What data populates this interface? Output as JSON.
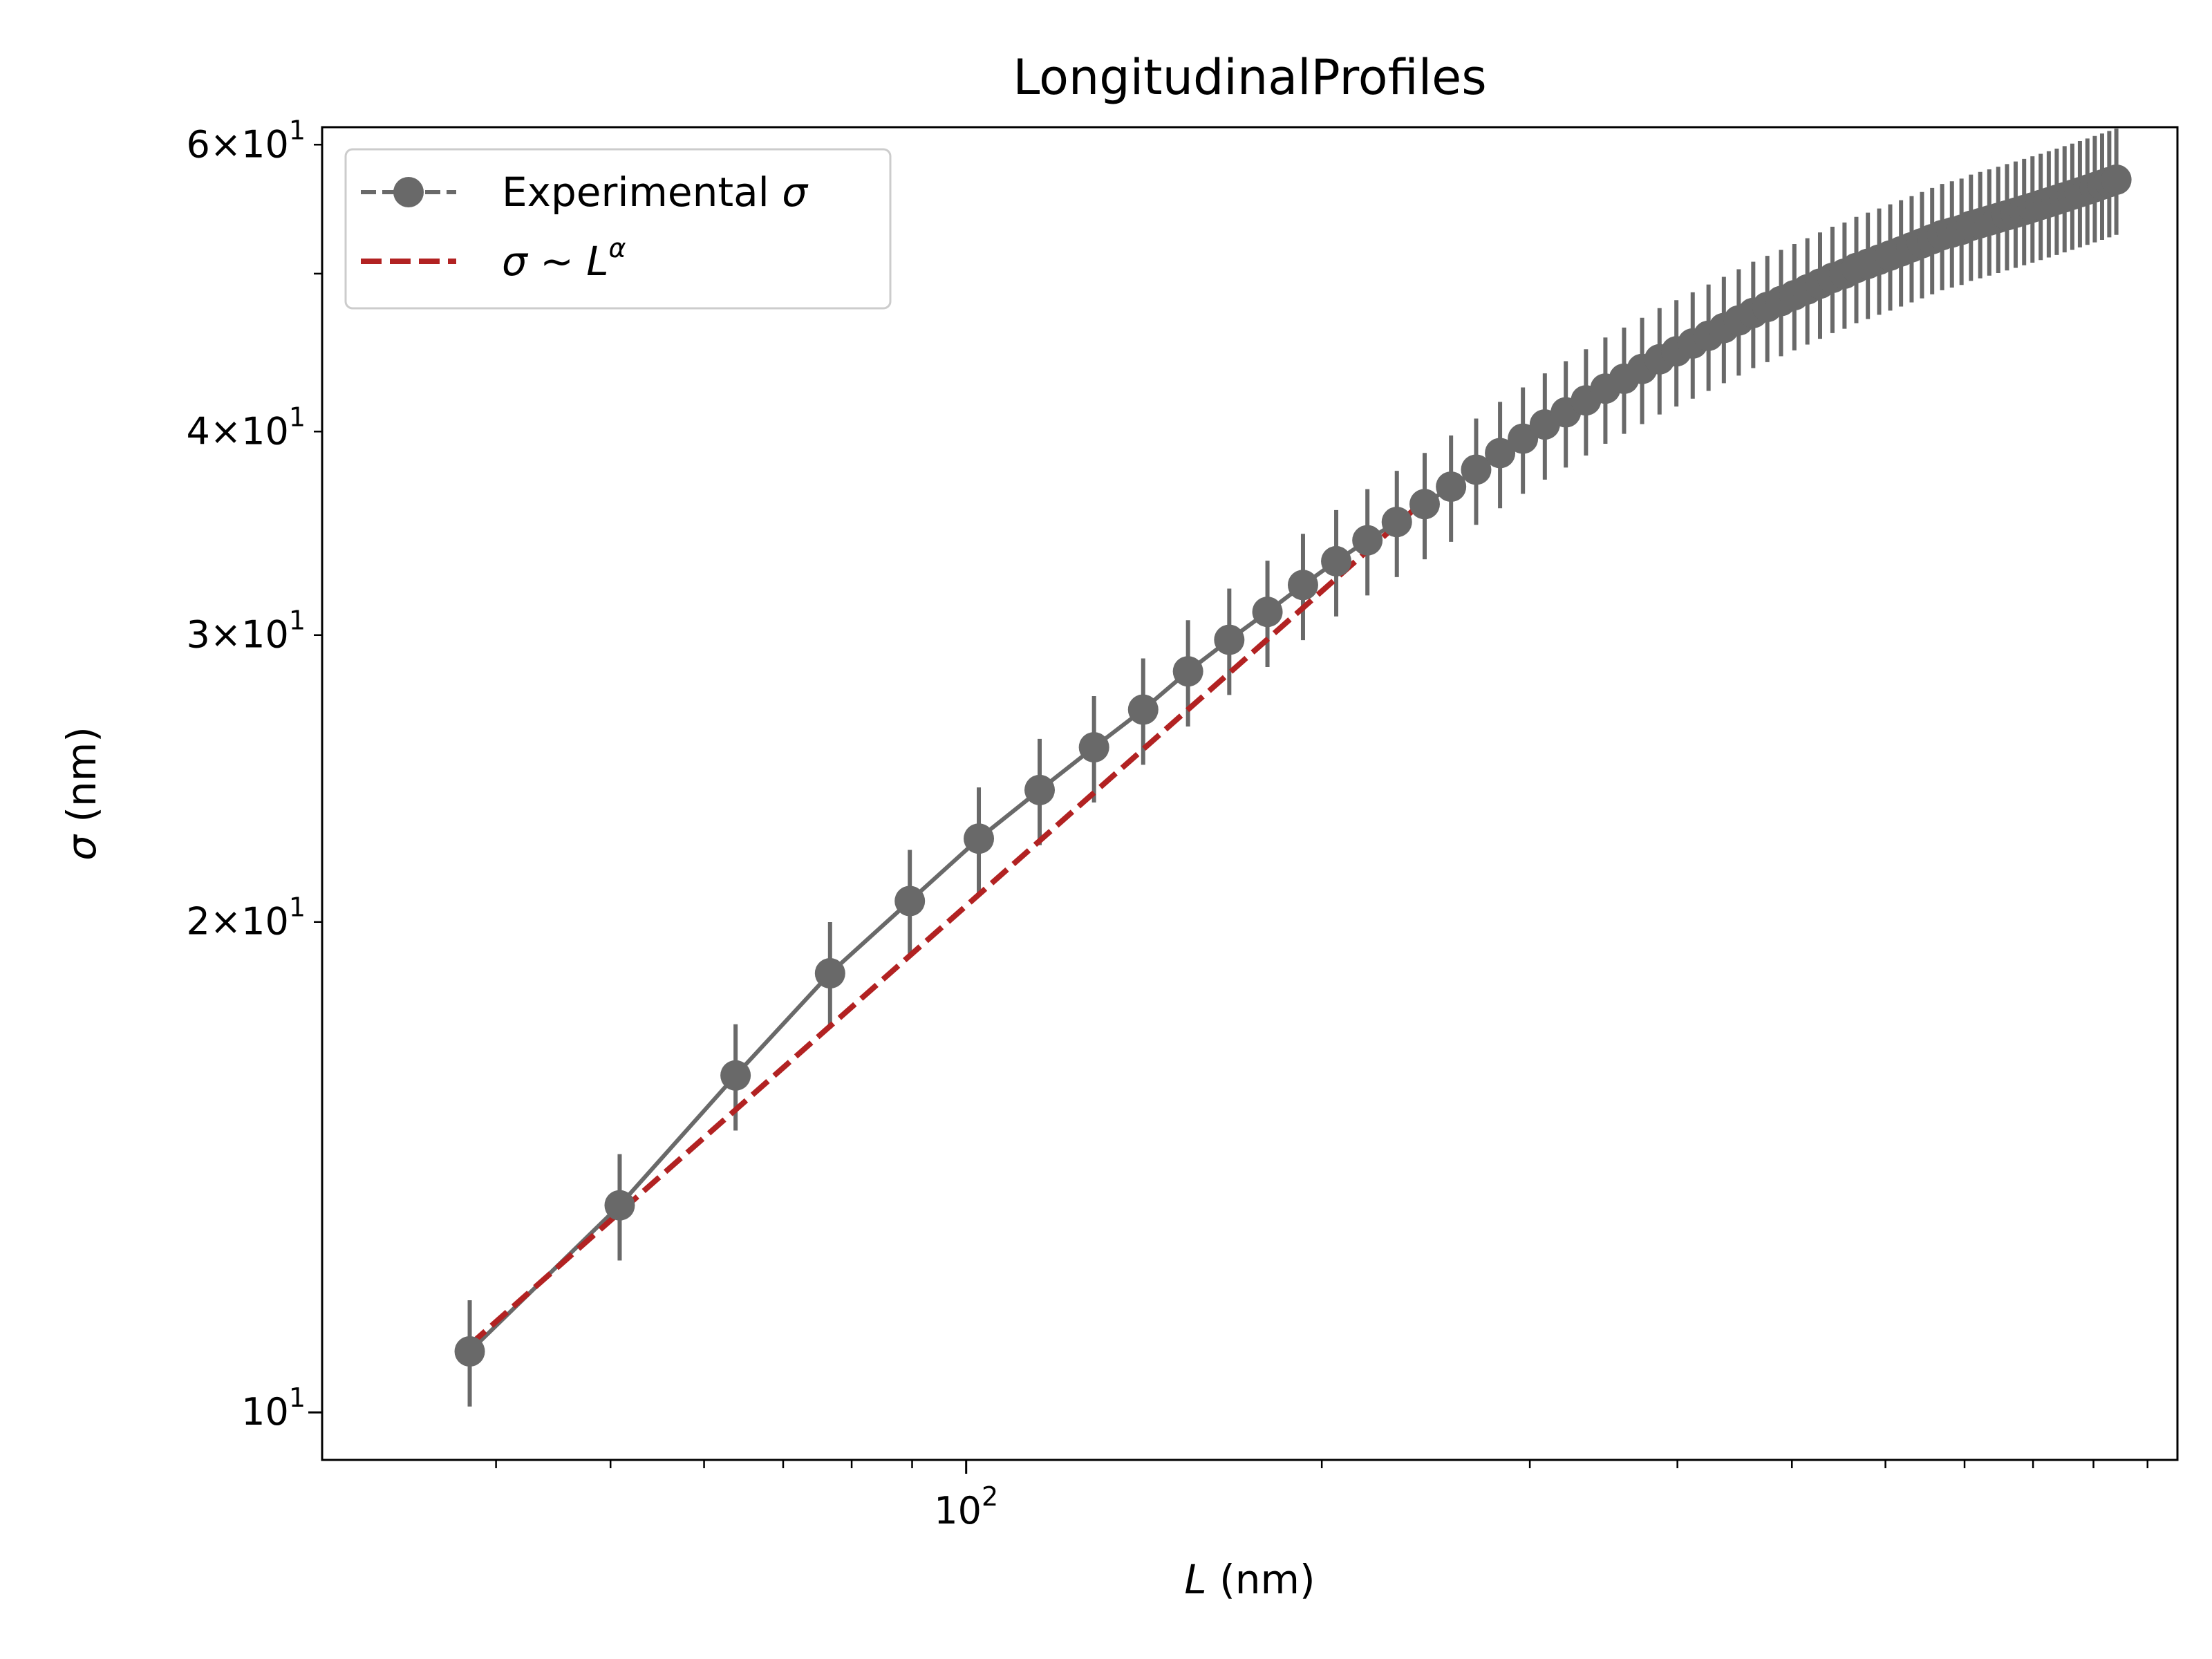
{
  "chart_data": {
    "type": "line",
    "title": "LongitudinalProfiles",
    "xlabel_var": "L",
    "xlabel_unit": " (nm)",
    "ylabel_var": "σ",
    "ylabel_unit": " (nm)",
    "x_scale": "log",
    "y_scale": "log",
    "xlim": [
      28.5,
      1060
    ],
    "ylim": [
      9.35,
      61.5
    ],
    "grid": false,
    "legend_position": "top-left",
    "x_ticks": [
      {
        "value": 100,
        "base": "10",
        "exp": "2"
      }
    ],
    "y_ticks": [
      {
        "value": 10,
        "mant": "",
        "base": "10",
        "exp": "1"
      },
      {
        "value": 20,
        "mant": "2×",
        "base": "10",
        "exp": "1"
      },
      {
        "value": 30,
        "mant": "3×",
        "base": "10",
        "exp": "1"
      },
      {
        "value": 40,
        "mant": "4×",
        "base": "10",
        "exp": "1"
      },
      {
        "value": 60,
        "mant": "6×",
        "base": "10",
        "exp": "1"
      }
    ],
    "series": [
      {
        "name": "Experimental σ",
        "legend_main": "Experimental ",
        "legend_sym": "σ",
        "color": "#696969",
        "x": [
          38.0,
          50.9,
          63.8,
          76.7,
          89.6,
          102.5,
          115.4,
          128.3,
          141.2,
          154.1,
          167.0,
          179.9,
          192.8,
          205.7,
          218.6,
          231.5,
          244.4,
          257.3,
          270.2,
          283.1,
          296.0,
          308.9,
          321.8,
          334.7,
          347.6,
          360.5,
          373.4,
          386.3,
          399.2,
          412.1,
          425.0,
          437.9,
          450.8,
          463.7,
          476.6,
          489.5,
          502.4,
          515.3,
          528.2,
          541.1,
          554.0,
          566.9,
          579.8,
          592.7,
          605.6,
          618.5,
          631.4,
          644.3,
          657.2,
          670.1,
          683.0,
          695.9,
          708.8,
          721.7,
          734.6,
          747.5,
          760.4,
          773.3,
          786.2,
          799.1,
          812.0,
          824.9,
          837.8,
          850.7,
          863.6,
          876.5,
          889.4,
          902.3,
          915.2,
          928.1,
          941.0
        ],
        "y": [
          10.9,
          13.4,
          16.1,
          18.6,
          20.6,
          22.5,
          24.1,
          25.6,
          27.0,
          28.5,
          29.8,
          31.0,
          32.2,
          33.3,
          34.3,
          35.2,
          36.1,
          37.0,
          37.9,
          38.8,
          39.6,
          40.4,
          41.1,
          41.8,
          42.5,
          43.1,
          43.7,
          44.3,
          44.8,
          45.3,
          45.8,
          46.3,
          46.8,
          47.3,
          47.7,
          48.1,
          48.5,
          48.9,
          49.3,
          49.7,
          50.0,
          50.4,
          50.7,
          51.0,
          51.3,
          51.6,
          51.9,
          52.2,
          52.5,
          52.8,
          53.0,
          53.2,
          53.5,
          53.7,
          53.9,
          54.1,
          54.3,
          54.5,
          54.7,
          54.9,
          55.1,
          55.3,
          55.5,
          55.7,
          55.9,
          56.1,
          56.3,
          56.5,
          56.7,
          56.9,
          57.1
        ],
        "yerr_rel": 0.075
      },
      {
        "name": "σ ~ L^α",
        "legend_main": "σ ~ L",
        "legend_sup": "α",
        "color": "#b22222",
        "dashed": true,
        "x": [
          38.0,
          244.4
        ],
        "y": [
          11.0,
          36.3
        ]
      }
    ]
  }
}
